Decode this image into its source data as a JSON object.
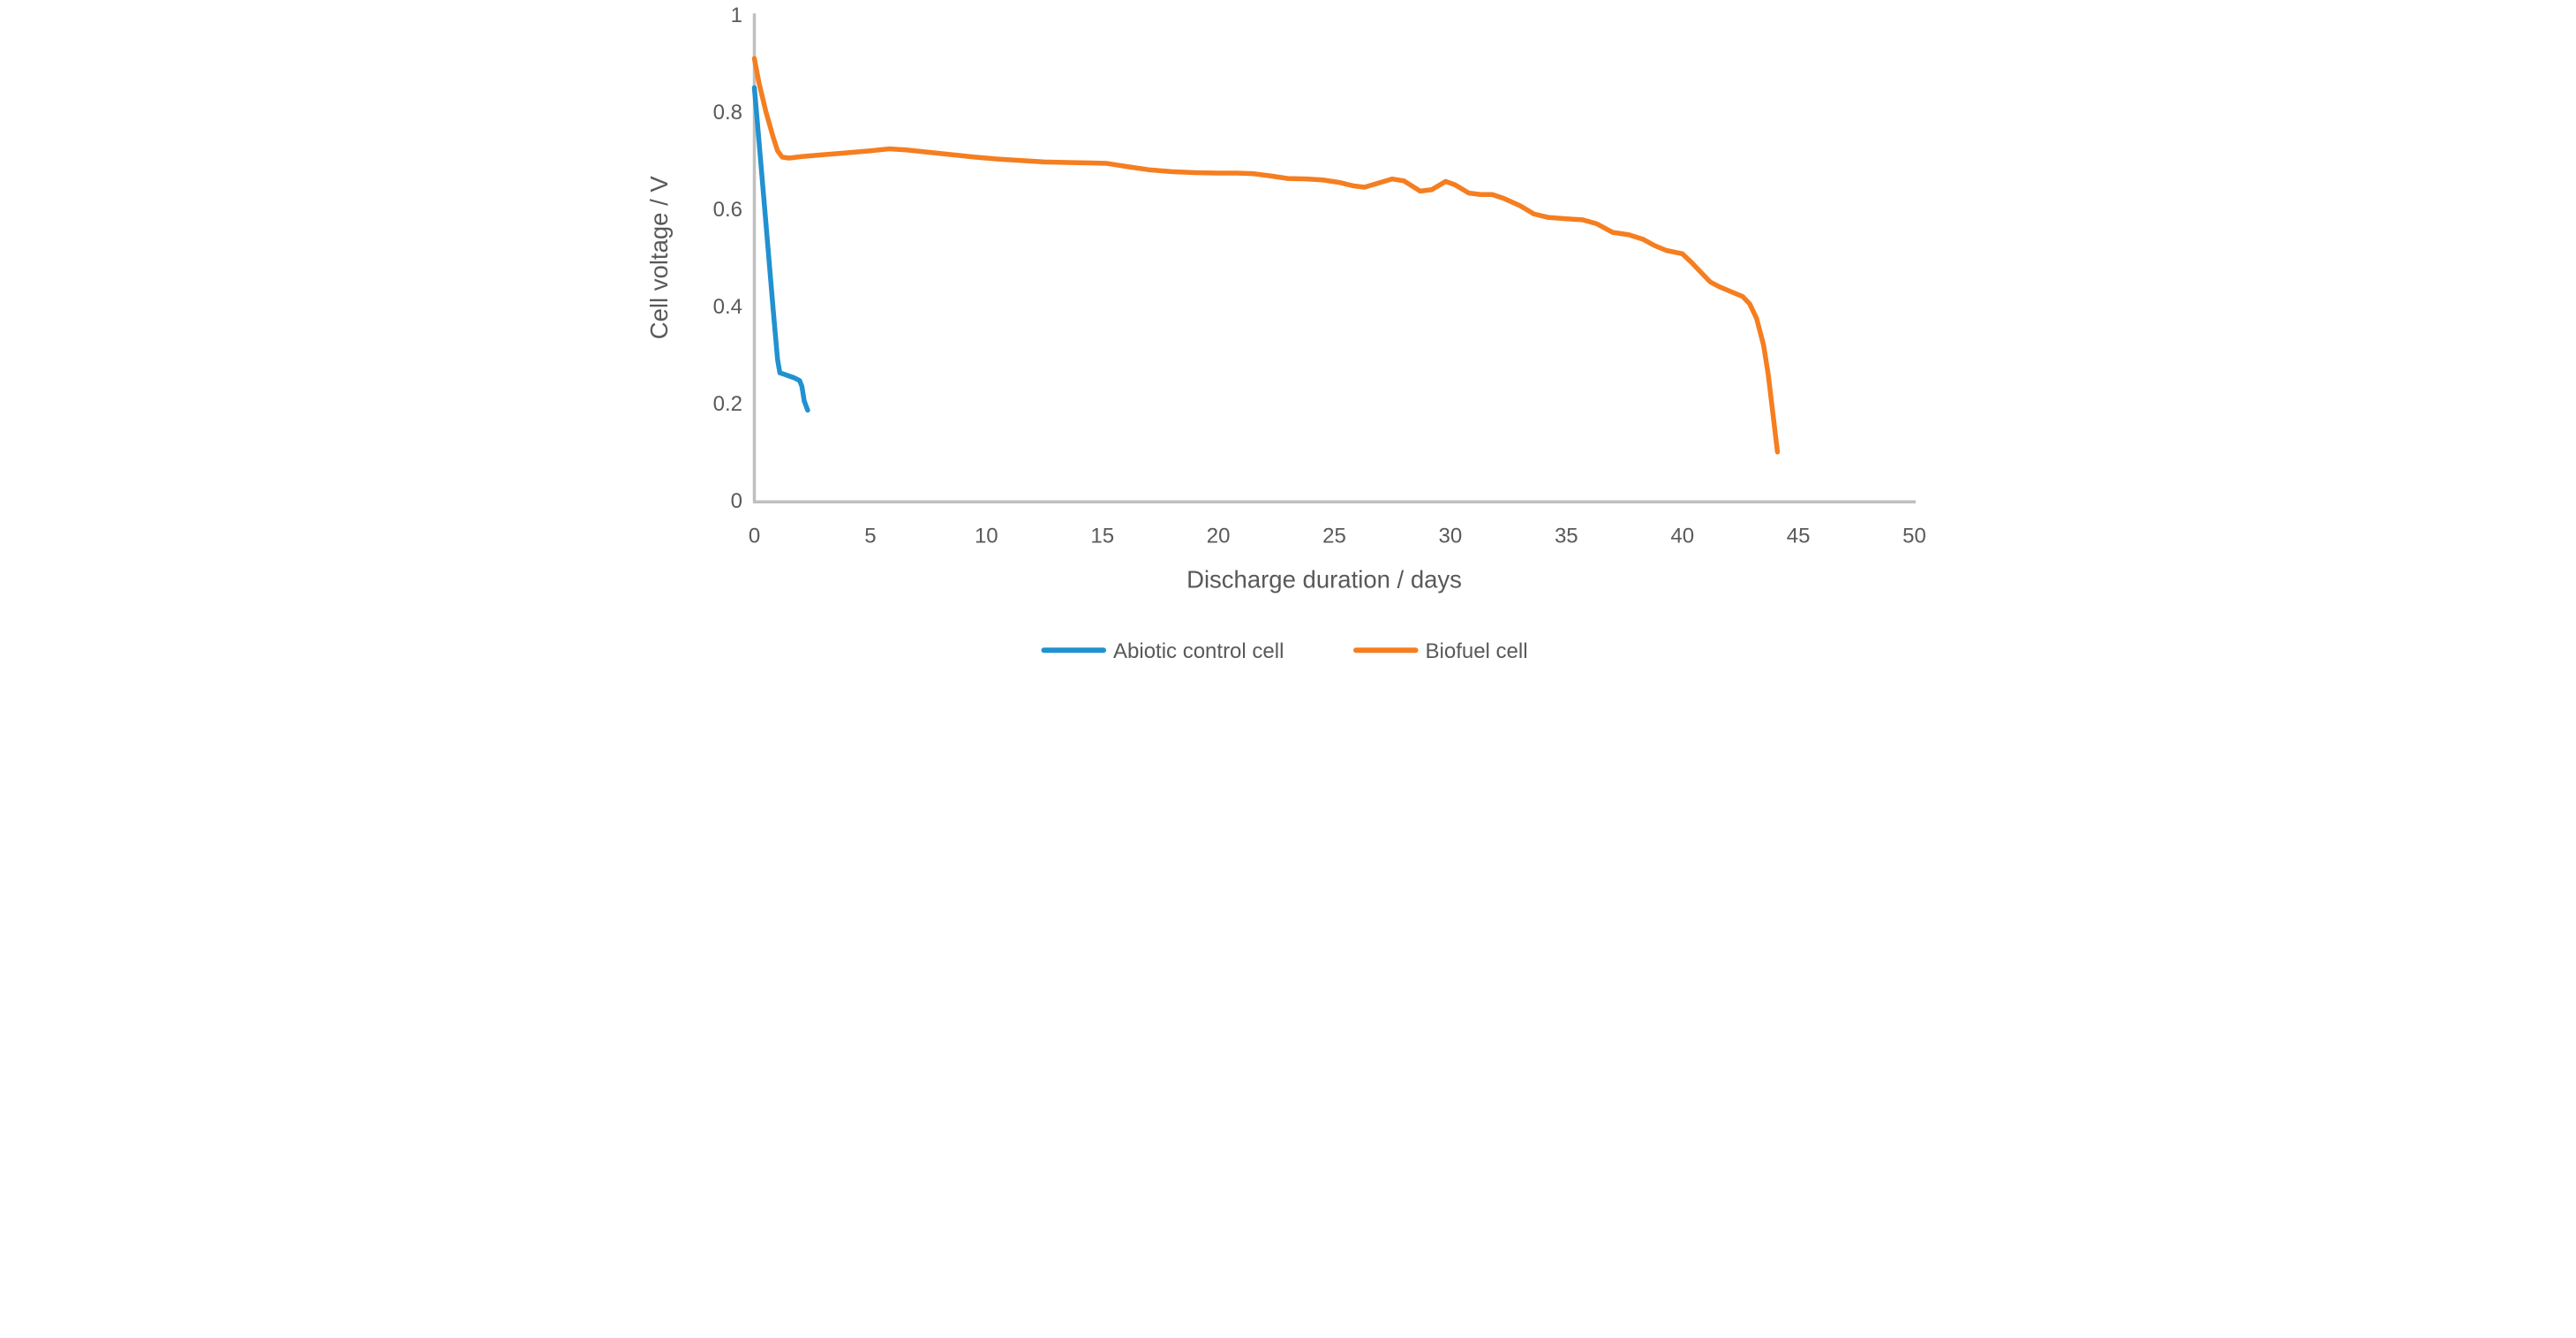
{
  "chart_data": {
    "type": "line",
    "title": "",
    "xlabel": "Discharge duration / days",
    "ylabel": "Cell voltage / V",
    "xlim": [
      0,
      50
    ],
    "ylim": [
      0,
      1
    ],
    "grid": false,
    "legend_position": "bottom-center",
    "x_ticks": [
      {
        "value": 0,
        "label": "0"
      },
      {
        "value": 5,
        "label": "5"
      },
      {
        "value": 10,
        "label": "10"
      },
      {
        "value": 15,
        "label": "15"
      },
      {
        "value": 20,
        "label": "20"
      },
      {
        "value": 25,
        "label": "25"
      },
      {
        "value": 30,
        "label": "30"
      },
      {
        "value": 35,
        "label": "35"
      },
      {
        "value": 40,
        "label": "40"
      },
      {
        "value": 45,
        "label": "45"
      },
      {
        "value": 50,
        "label": "50"
      }
    ],
    "y_ticks": [
      {
        "value": 0,
        "label": "0"
      },
      {
        "value": 0.2,
        "label": "0.2"
      },
      {
        "value": 0.4,
        "label": "0.4"
      },
      {
        "value": 0.6,
        "label": "0.6"
      },
      {
        "value": 0.8,
        "label": "0.8"
      },
      {
        "value": 1,
        "label": "1"
      }
    ],
    "series": [
      {
        "name": "Abiotic control cell",
        "color": "#2191d0",
        "x": [
          0,
          0.2,
          0.5,
          0.8,
          1.0,
          1.1,
          1.4,
          1.7,
          1.95,
          2.05,
          2.15,
          2.25,
          2.3
        ],
        "y": [
          0.85,
          0.74,
          0.57,
          0.4,
          0.29,
          0.263,
          0.258,
          0.253,
          0.247,
          0.235,
          0.205,
          0.192,
          0.186
        ]
      },
      {
        "name": "Biofuel cell",
        "color": "#f57e20",
        "x": [
          0,
          0.2,
          0.5,
          0.8,
          1.0,
          1.2,
          1.5,
          2,
          3,
          4,
          5,
          5.8,
          6.5,
          7.5,
          8.5,
          9.5,
          10.5,
          11.5,
          12.5,
          13.5,
          14.5,
          15.2,
          16,
          17,
          18,
          19,
          20,
          20.8,
          21.5,
          22.3,
          23,
          23.8,
          24.5,
          25.2,
          25.8,
          26.3,
          27,
          27.5,
          28,
          28.7,
          29.2,
          29.8,
          30.2,
          30.8,
          31.3,
          31.8,
          32.3,
          33,
          33.6,
          34.2,
          35,
          35.7,
          36.3,
          37,
          37.7,
          38.3,
          38.8,
          39.3,
          40,
          40.4,
          40.8,
          41.2,
          41.6,
          42.2,
          42.6,
          42.9,
          43.2,
          43.5,
          43.7,
          43.9,
          44.1
        ],
        "y": [
          0.91,
          0.86,
          0.8,
          0.75,
          0.72,
          0.707,
          0.705,
          0.708,
          0.712,
          0.716,
          0.72,
          0.724,
          0.722,
          0.717,
          0.712,
          0.707,
          0.703,
          0.7,
          0.697,
          0.696,
          0.695,
          0.694,
          0.688,
          0.681,
          0.677,
          0.675,
          0.674,
          0.674,
          0.673,
          0.668,
          0.663,
          0.662,
          0.66,
          0.655,
          0.648,
          0.645,
          0.655,
          0.662,
          0.658,
          0.637,
          0.64,
          0.657,
          0.65,
          0.633,
          0.63,
          0.63,
          0.622,
          0.607,
          0.59,
          0.583,
          0.58,
          0.578,
          0.57,
          0.552,
          0.547,
          0.538,
          0.525,
          0.515,
          0.508,
          0.49,
          0.47,
          0.45,
          0.44,
          0.428,
          0.42,
          0.405,
          0.375,
          0.32,
          0.26,
          0.18,
          0.1
        ]
      }
    ],
    "colors": {
      "axis_line": "#bfbfbf",
      "text": "#595959",
      "series_blue": "#2191d0",
      "series_orange": "#f57e20"
    }
  }
}
